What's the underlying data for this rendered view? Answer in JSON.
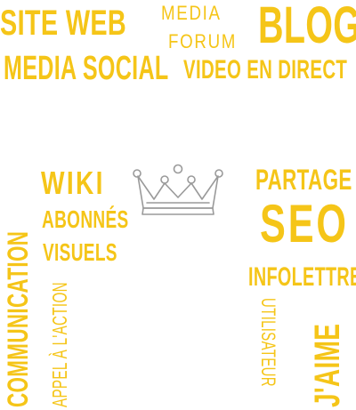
{
  "colors": {
    "accent": "#f5c518",
    "crown_stroke": "#9a9a9a"
  },
  "words": {
    "site_web": "SITE WEB",
    "media": "MEDIA",
    "blog": "BLOG",
    "forum": "FORUM",
    "media_social": "MEDIA SOCIAL",
    "video_direct": "VIDEO EN DIRECT",
    "wiki": "WIKI",
    "abonnes": "ABONNÉS",
    "visuels": "VISUELS",
    "partage": "PARTAGE",
    "seo": "SEO",
    "infolettre": "INFOLETTRE",
    "communication": "COMMUNICATION",
    "appel": "APPEL À L'ACTION",
    "jaime": "J'AIME",
    "utilisateur": "UTILISATEUR"
  },
  "icons": {
    "center": "crown-icon"
  }
}
